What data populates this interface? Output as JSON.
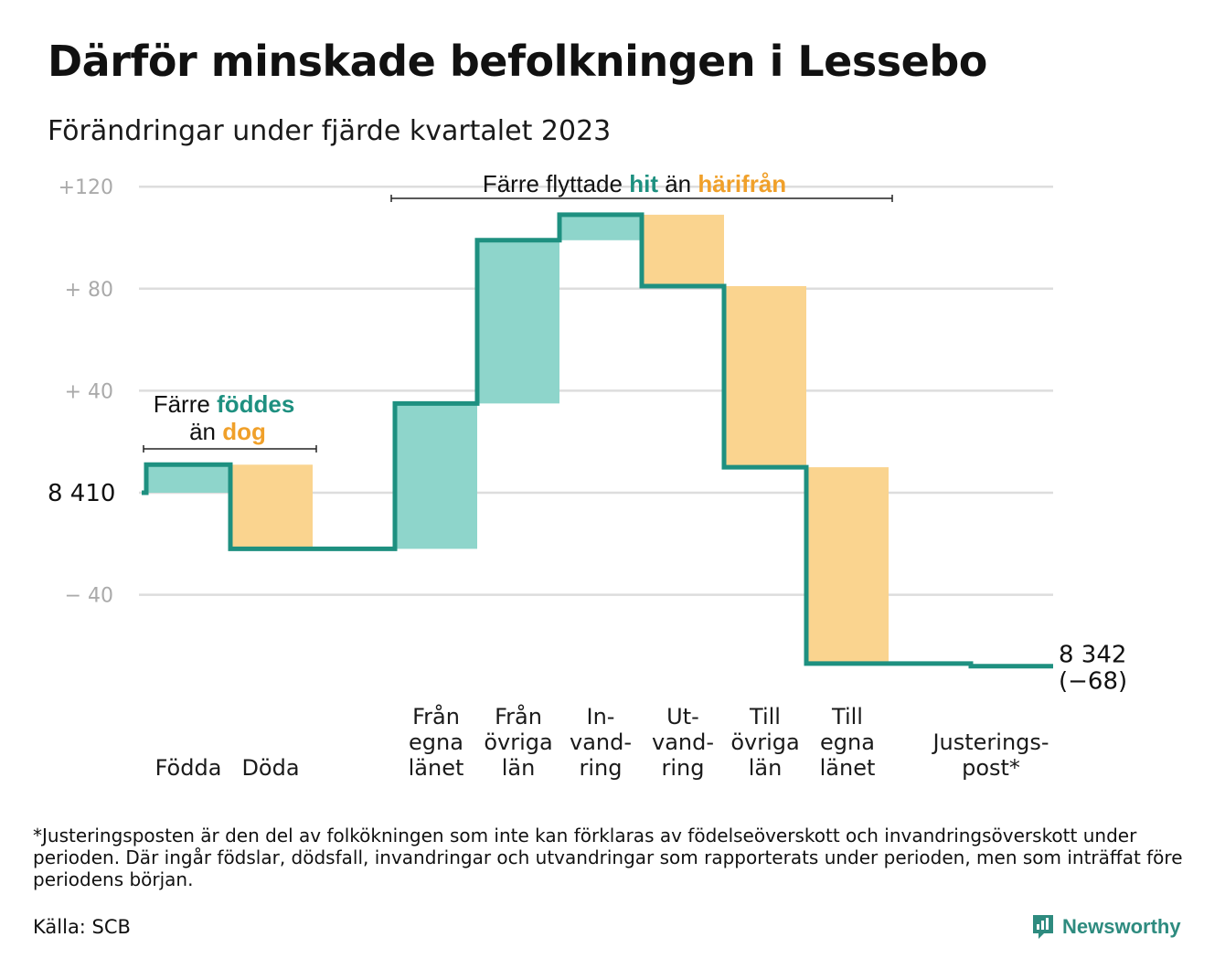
{
  "title": "Därför minskade befolkningen i Lessebo",
  "subtitle": "Förändringar under fjärde kvartalet 2023",
  "colors": {
    "teal_line": "#1e9080",
    "teal_fill": "#8ed5cb",
    "orange_fill": "#fad48f",
    "teal_text": "#1e9080",
    "orange_text": "#f0a02a",
    "grid": "#dddddd",
    "tick_text": "#aaaaaa"
  },
  "chart_data": {
    "type": "waterfall",
    "start": {
      "label": "8  410",
      "value": 8410
    },
    "end": {
      "label": "8 342",
      "change_label": "(−68)",
      "value": 8342
    },
    "y_ticks": [
      {
        "value": 120,
        "label": "+120"
      },
      {
        "value": 80,
        "label": "+  80"
      },
      {
        "value": 40,
        "label": "+  40"
      },
      {
        "value": -40,
        "label": "−  40"
      }
    ],
    "ylim": [
      -72,
      128
    ],
    "categories": [
      {
        "label_lines": [
          "Födda"
        ],
        "value": 11,
        "color": "teal"
      },
      {
        "label_lines": [
          "Döda"
        ],
        "value": -33,
        "color": "orange"
      },
      {
        "label_lines": [
          "Från",
          "egna",
          "länet"
        ],
        "value": 57,
        "color": "teal"
      },
      {
        "label_lines": [
          "Från",
          "övriga",
          "län"
        ],
        "value": 64,
        "color": "teal"
      },
      {
        "label_lines": [
          "In-",
          "vand-",
          "ring"
        ],
        "value": 10,
        "color": "teal"
      },
      {
        "label_lines": [
          "Ut-",
          "vand-",
          "ring"
        ],
        "value": -28,
        "color": "orange"
      },
      {
        "label_lines": [
          "Till",
          "övriga",
          "län"
        ],
        "value": -71,
        "color": "orange"
      },
      {
        "label_lines": [
          "Till",
          "egna",
          "länet"
        ],
        "value": -77,
        "color": "orange"
      },
      {
        "label_lines": [
          "Justerings-",
          "post*"
        ],
        "value": -1,
        "color": "none"
      }
    ],
    "annotations": {
      "births": {
        "line1_prefix": "Färre",
        "line1_highlight": "föddes",
        "line2_prefix": "än",
        "line2_highlight": "dog"
      },
      "migration": {
        "prefix": "Färre flyttade",
        "highlight1": "hit",
        "middle": "än",
        "highlight2": "härifrån"
      }
    }
  },
  "footnote": "*Justeringsposten är den del av folkökningen som inte kan förklaras av födelseöverskott och invandringsöverskott under perioden. Där ingår födslar, dödsfall, invandringar och utvandringar som rapporterats under perioden, men som inträffat före periodens början.",
  "source": "Källa: SCB",
  "brand": {
    "name": "Newsworthy",
    "icon": "newsworthy-logo-icon"
  }
}
